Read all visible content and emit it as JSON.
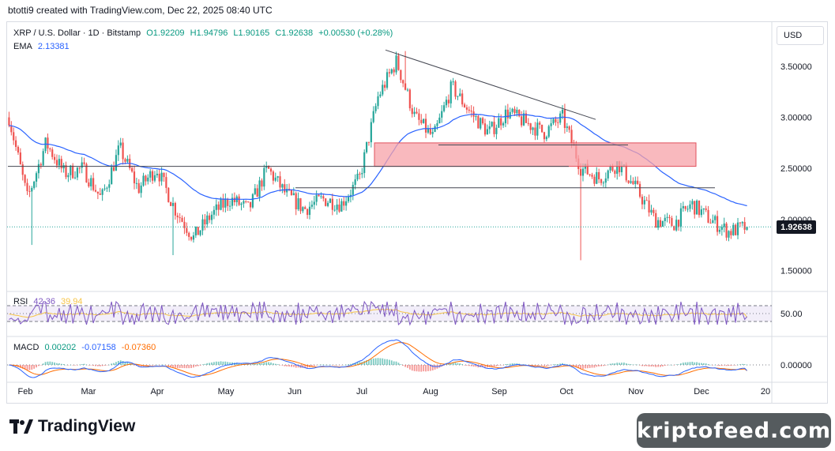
{
  "header": {
    "text": "btotti9 created with TradingView.com, Dec 22, 2025 08:40 UTC"
  },
  "legend": {
    "symbol": "XRP / U.S. Dollar · 1D · Bitstamp",
    "open": "O1.92209",
    "high": "H1.94796",
    "low": "L1.90165",
    "close": "C1.92638",
    "change": "+0.00530 (+0.28%)",
    "ema_label": "EMA",
    "ema_value": "2.13381",
    "rsi_label": "RSI",
    "rsi_value": "42.36",
    "rsi_ma_value": "39.94",
    "macd_label": "MACD",
    "macd_hist": "0.00202",
    "macd_line": "-0.07158",
    "macd_signal": "-0.07360"
  },
  "currency_button": "USD",
  "last_price": "1.92638",
  "colors": {
    "up": "#26a69a",
    "down": "#ef5350",
    "ema": "#2962ff",
    "rsi": "#7e57c2",
    "rsi_ma": "#f7c548",
    "macd": "#2962ff",
    "signal": "#ff6d00",
    "zone_fill": "#f7a1a8",
    "zone_stroke": "#e0515c"
  },
  "branding": {
    "logo_text": "TradingView",
    "watermark": "kriptofeed.com"
  },
  "chart_data": [
    {
      "type": "candlestick",
      "title": "XRP / U.S. Dollar · 1D · Bitstamp",
      "y_ticks": [
        "3.50000",
        "3.00000",
        "2.50000",
        "2.00000",
        "1.50000"
      ],
      "x_ticks": [
        "Feb",
        "Mar",
        "Apr",
        "May",
        "Jun",
        "Jul",
        "Aug",
        "Sep",
        "Oct",
        "Nov",
        "Dec",
        "20"
      ],
      "ylim": [
        1.3,
        3.8
      ],
      "anchors": [
        [
          "Feb",
          3.0
        ],
        [
          "Feb",
          2.2
        ],
        [
          "Feb",
          2.75
        ],
        [
          "Feb",
          2.45
        ],
        [
          "Mar",
          2.5
        ],
        [
          "Mar",
          2.2
        ],
        [
          "Mar",
          2.7
        ],
        [
          "Mar",
          2.3
        ],
        [
          "Mar",
          2.5
        ],
        [
          "Apr",
          2.1
        ],
        [
          "Apr",
          1.82
        ],
        [
          "Apr",
          2.05
        ],
        [
          "May",
          2.2
        ],
        [
          "May",
          2.1
        ],
        [
          "May",
          2.5
        ],
        [
          "Jun",
          2.25
        ],
        [
          "Jun",
          2.1
        ],
        [
          "Jun",
          2.2
        ],
        [
          "Jul",
          2.15
        ],
        [
          "Jul",
          2.4
        ],
        [
          "Jul",
          3.2
        ],
        [
          "Jul",
          3.55
        ],
        [
          "Aug",
          3.0
        ],
        [
          "Aug",
          2.8
        ],
        [
          "Aug",
          3.3
        ],
        [
          "Aug",
          3.05
        ],
        [
          "Sep",
          2.85
        ],
        [
          "Sep",
          3.05
        ],
        [
          "Sep",
          2.95
        ],
        [
          "Oct",
          2.85
        ],
        [
          "Oct",
          3.0
        ],
        [
          "Oct",
          2.5
        ],
        [
          "Oct",
          2.4
        ],
        [
          "Nov",
          2.55
        ],
        [
          "Nov",
          2.3
        ],
        [
          "Nov",
          2.0
        ],
        [
          "Nov",
          1.95
        ],
        [
          "Dec",
          2.15
        ],
        [
          "Dec",
          2.0
        ],
        [
          "Dec",
          1.88
        ],
        [
          "Dec",
          1.92638
        ]
      ],
      "ema_last": 2.13381,
      "last_close": 1.92638,
      "notable_wicks": [
        [
          "Oct",
          1.6
        ],
        [
          "Apr",
          1.65
        ],
        [
          "Feb",
          1.75
        ],
        [
          "Jul",
          3.65
        ]
      ],
      "resistance_zone": [
        2.52,
        2.75
      ],
      "trendline_desc": [
        [
          "Jul",
          3.66
        ],
        [
          "Oct",
          2.98
        ]
      ],
      "support_lines": [
        [
          [
            "Feb",
            2.52
          ],
          [
            "Oct",
            2.52
          ]
        ],
        [
          [
            "Jun",
            2.31
          ],
          [
            "Nov",
            2.31
          ]
        ]
      ]
    },
    {
      "type": "line",
      "title": "RSI",
      "y_ticks": [
        "50.00"
      ],
      "series": [
        {
          "name": "RSI",
          "last": 42.36
        },
        {
          "name": "RSI MA",
          "last": 39.94
        }
      ],
      "bands": [
        30,
        70
      ]
    },
    {
      "type": "line",
      "title": "MACD",
      "y_ticks": [
        "0.00000"
      ],
      "series": [
        {
          "name": "Histogram",
          "last": 0.00202
        },
        {
          "name": "MACD",
          "last": -0.07158
        },
        {
          "name": "Signal",
          "last": -0.0736
        }
      ]
    }
  ]
}
